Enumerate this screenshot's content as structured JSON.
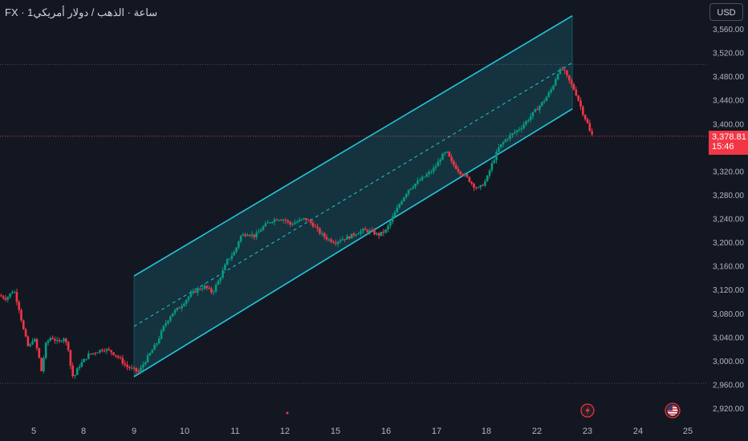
{
  "header": {
    "symbol": "FX · 1ساعة · الذهب / دولار أمريكي"
  },
  "currency_button": {
    "label": "USD"
  },
  "last_price": {
    "value": "3,378.81",
    "countdown": "15:46"
  },
  "colors": {
    "background": "#131722",
    "grid": "#1e222d",
    "up": "#089981",
    "down": "#f23645",
    "channel": "#22c7dc",
    "channel_fill": "rgba(34,199,220,0.16)",
    "axis_text": "#b2b5be"
  },
  "icons": {
    "event_lightning": "lightning-icon",
    "event_flag": "us-flag-icon"
  },
  "chart_data": {
    "type": "candlestick",
    "title": "",
    "ylim": [
      2900,
      3590
    ],
    "y_ticks": [
      "3,560.00",
      "3,520.00",
      "3,480.00",
      "3,440.00",
      "3,400.00",
      "3,360.00",
      "3,320.00",
      "3,280.00",
      "3,240.00",
      "3,200.00",
      "3,160.00",
      "3,120.00",
      "3,080.00",
      "3,040.00",
      "3,000.00",
      "2,960.00",
      "2,920.00"
    ],
    "y_tick_values": [
      3560,
      3520,
      3480,
      3440,
      3400,
      3360,
      3320,
      3280,
      3240,
      3200,
      3160,
      3120,
      3080,
      3040,
      3000,
      2960,
      2920
    ],
    "x_labels": [
      "5",
      "8",
      "9",
      "10",
      "11",
      "12",
      "15",
      "16",
      "17",
      "18",
      "22",
      "23",
      "24",
      "25"
    ],
    "x_day_index": [
      0,
      1,
      2,
      3,
      4,
      5,
      6,
      7,
      8,
      9,
      10,
      11,
      12,
      13
    ],
    "x_range": [
      -0.5,
      13.7
    ],
    "horizontal_levels": [
      3500,
      2962
    ],
    "last_price_level": 3378.81,
    "price_path": [
      [
        -0.7,
        3110
      ],
      [
        -0.55,
        3105
      ],
      [
        -0.4,
        3120
      ],
      [
        -0.3,
        3090
      ],
      [
        -0.2,
        3050
      ],
      [
        -0.1,
        3020
      ],
      [
        0.0,
        3040
      ],
      [
        0.1,
        3010
      ],
      [
        0.15,
        2980
      ],
      [
        0.25,
        3030
      ],
      [
        0.35,
        3040
      ],
      [
        0.5,
        3030
      ],
      [
        0.6,
        3040
      ],
      [
        0.7,
        3020
      ],
      [
        0.75,
        2985
      ],
      [
        0.8,
        2970
      ],
      [
        0.9,
        2990
      ],
      [
        1.0,
        3000
      ],
      [
        1.1,
        3010
      ],
      [
        1.25,
        3015
      ],
      [
        1.4,
        3020
      ],
      [
        1.55,
        3015
      ],
      [
        1.7,
        3005
      ],
      [
        1.85,
        2990
      ],
      [
        2.0,
        2985
      ],
      [
        2.1,
        2980
      ],
      [
        2.15,
        2990
      ],
      [
        2.3,
        3010
      ],
      [
        2.45,
        3030
      ],
      [
        2.6,
        3060
      ],
      [
        2.75,
        3080
      ],
      [
        2.9,
        3090
      ],
      [
        3.0,
        3100
      ],
      [
        3.1,
        3110
      ],
      [
        3.25,
        3120
      ],
      [
        3.4,
        3125
      ],
      [
        3.55,
        3115
      ],
      [
        3.7,
        3140
      ],
      [
        3.85,
        3170
      ],
      [
        4.0,
        3185
      ],
      [
        4.1,
        3210
      ],
      [
        4.25,
        3215
      ],
      [
        4.4,
        3210
      ],
      [
        4.55,
        3225
      ],
      [
        4.7,
        3235
      ],
      [
        4.85,
        3240
      ],
      [
        5.0,
        3238
      ],
      [
        5.1,
        3230
      ],
      [
        5.25,
        3235
      ],
      [
        5.4,
        3240
      ],
      [
        5.55,
        3230
      ],
      [
        5.7,
        3215
      ],
      [
        5.85,
        3205
      ],
      [
        6.0,
        3200
      ],
      [
        6.1,
        3205
      ],
      [
        6.25,
        3208
      ],
      [
        6.4,
        3215
      ],
      [
        6.55,
        3220
      ],
      [
        6.7,
        3218
      ],
      [
        6.85,
        3212
      ],
      [
        7.0,
        3220
      ],
      [
        7.15,
        3245
      ],
      [
        7.3,
        3270
      ],
      [
        7.45,
        3290
      ],
      [
        7.6,
        3300
      ],
      [
        7.75,
        3310
      ],
      [
        7.9,
        3320
      ],
      [
        8.0,
        3330
      ],
      [
        8.1,
        3345
      ],
      [
        8.2,
        3352
      ],
      [
        8.3,
        3335
      ],
      [
        8.45,
        3320
      ],
      [
        8.6,
        3310
      ],
      [
        8.75,
        3295
      ],
      [
        8.85,
        3290
      ],
      [
        9.0,
        3305
      ],
      [
        9.1,
        3330
      ],
      [
        9.25,
        3360
      ],
      [
        9.4,
        3375
      ],
      [
        9.55,
        3385
      ],
      [
        9.7,
        3395
      ],
      [
        9.85,
        3410
      ],
      [
        10.0,
        3425
      ],
      [
        10.15,
        3440
      ],
      [
        10.3,
        3460
      ],
      [
        10.42,
        3488
      ],
      [
        10.52,
        3492
      ],
      [
        10.62,
        3475
      ],
      [
        10.72,
        3460
      ],
      [
        10.8,
        3445
      ],
      [
        10.9,
        3420
      ],
      [
        11.0,
        3400
      ],
      [
        11.05,
        3385
      ],
      [
        11.12,
        3378.81
      ]
    ],
    "channel": {
      "upper": [
        [
          2.0,
          3143
        ],
        [
          10.7,
          3582
        ]
      ],
      "lower": [
        [
          2.0,
          2973
        ],
        [
          10.7,
          3425
        ]
      ],
      "mid": [
        [
          2.0,
          3058
        ],
        [
          10.7,
          3503
        ]
      ]
    }
  }
}
